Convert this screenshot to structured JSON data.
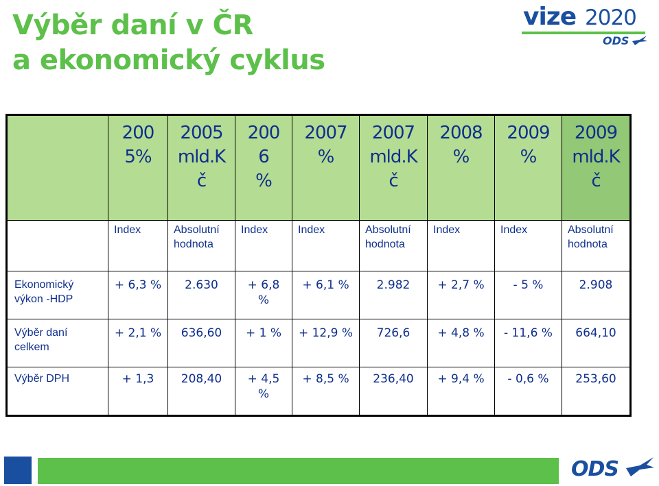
{
  "title": {
    "line1": "Výběr daní v ČR",
    "line2": "a ekonomický cyklus"
  },
  "logo": {
    "vize": "vize",
    "year": "2020",
    "ods": "ODS"
  },
  "table": {
    "years": [
      [
        "200",
        "5%"
      ],
      [
        "2005",
        "mld.K",
        "č"
      ],
      [
        "200",
        "6",
        "%"
      ],
      [
        "2007",
        "%"
      ],
      [
        "2007",
        "mld.K",
        "č"
      ],
      [
        "2008",
        "%"
      ],
      [
        "2009",
        "%"
      ],
      [
        "2009",
        "mld.K",
        "č"
      ]
    ],
    "subheaders": [
      [
        "Index"
      ],
      [
        "Absolutní",
        "hodnota"
      ],
      [
        "Index"
      ],
      [
        "Index"
      ],
      [
        "Absolutní",
        "hodnota"
      ],
      [
        "Index"
      ],
      [
        "Index"
      ],
      [
        "Absolutní",
        "hodnota"
      ]
    ],
    "rows": [
      {
        "label": [
          "Ekonomický",
          "výkon -HDP"
        ],
        "cells": [
          [
            "+ 6,3 %"
          ],
          [
            "2.630"
          ],
          [
            "+ 6,8",
            "%"
          ],
          [
            "+ 6,1 %"
          ],
          [
            "2.982"
          ],
          [
            "+ 2,7 %"
          ],
          [
            "- 5 %"
          ],
          [
            "2.908"
          ]
        ]
      },
      {
        "label": [
          "Výběr daní",
          "celkem"
        ],
        "cells": [
          [
            "+ 2,1 %"
          ],
          [
            "636,60"
          ],
          [
            "+ 1 %"
          ],
          [
            "+ 12,9 %"
          ],
          [
            "726,6"
          ],
          [
            "+ 4,8 %"
          ],
          [
            "- 11,6 %"
          ],
          [
            "664,10"
          ]
        ]
      },
      {
        "label": [
          "Výběr DPH"
        ],
        "cells": [
          [
            "+ 1,3"
          ],
          [
            "208,40"
          ],
          [
            "+ 4,5",
            "%"
          ],
          [
            "+ 8,5 %"
          ],
          [
            "236,40"
          ],
          [
            "+ 9,4 %"
          ],
          [
            "- 0,6 %"
          ],
          [
            "253,60"
          ]
        ]
      }
    ]
  },
  "footer": {
    "ods": "ODS"
  },
  "colors": {
    "green": "#5cc04a",
    "blue": "#1a4fa0",
    "header_bg": "#b5dc93",
    "text": "#0e2f8c"
  }
}
